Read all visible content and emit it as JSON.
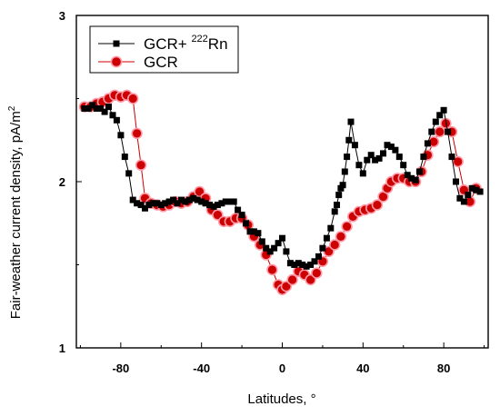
{
  "chart_data": {
    "type": "line",
    "xlabel": "Latitudes, °",
    "ylabel": "Fair-weather current density,  pA/m²",
    "xlim": [
      -102,
      102
    ],
    "ylim": [
      1,
      3
    ],
    "x_ticks": [
      -80,
      -40,
      0,
      40,
      80
    ],
    "x_tick_labels": [
      "-80",
      "-40",
      "0",
      "40",
      "80"
    ],
    "y_ticks": [
      1,
      2,
      3
    ],
    "y_tick_labels": [
      "1",
      "2",
      "3"
    ],
    "grid": false,
    "legend_position": "top-left",
    "legend": {
      "gcr_rn_prefix": "GCR+ ",
      "gcr_rn_sup": "222",
      "gcr_rn_suffix": "Rn",
      "gcr": "GCR"
    },
    "series": [
      {
        "key": "gcr_rn",
        "marker": "square",
        "color": "#000000",
        "x": [
          -98,
          -96,
          -94,
          -92,
          -90,
          -88,
          -86,
          -84,
          -82,
          -80,
          -78,
          -76,
          -74,
          -72,
          -70,
          -68,
          -66,
          -64,
          -62,
          -60,
          -58,
          -56,
          -54,
          -52,
          -50,
          -48,
          -46,
          -44,
          -42,
          -40,
          -38,
          -36,
          -34,
          -32,
          -30,
          -28,
          -26,
          -24,
          -22,
          -20,
          -18,
          -16,
          -14,
          -12,
          -10,
          -8,
          -6,
          -4,
          -2,
          0,
          2,
          4,
          6,
          8,
          10,
          12,
          14,
          16,
          18,
          20,
          22,
          24,
          26,
          27,
          28,
          29,
          30,
          31,
          32,
          33,
          34,
          36,
          38,
          40,
          42,
          44,
          46,
          48,
          50,
          52,
          54,
          56,
          58,
          60,
          62,
          64,
          66,
          68,
          70,
          72,
          74,
          76,
          78,
          80,
          82,
          84,
          86,
          88,
          90,
          92,
          94,
          96,
          98
        ],
        "y": [
          2.44,
          2.44,
          2.46,
          2.44,
          2.44,
          2.42,
          2.45,
          2.4,
          2.37,
          2.28,
          2.15,
          2.05,
          1.89,
          1.87,
          1.86,
          1.84,
          1.86,
          1.87,
          1.87,
          1.86,
          1.87,
          1.88,
          1.89,
          1.87,
          1.89,
          1.88,
          1.89,
          1.9,
          1.89,
          1.88,
          1.87,
          1.86,
          1.85,
          1.86,
          1.87,
          1.88,
          1.88,
          1.88,
          1.83,
          1.8,
          1.75,
          1.7,
          1.7,
          1.69,
          1.64,
          1.6,
          1.58,
          1.6,
          1.63,
          1.66,
          1.58,
          1.51,
          1.5,
          1.51,
          1.5,
          1.49,
          1.5,
          1.52,
          1.55,
          1.6,
          1.66,
          1.72,
          1.82,
          1.86,
          1.92,
          1.96,
          1.98,
          2.06,
          2.15,
          2.25,
          2.36,
          2.22,
          2.1,
          2.05,
          2.13,
          2.16,
          2.13,
          2.14,
          2.17,
          2.22,
          2.21,
          2.19,
          2.15,
          2.1,
          2.04,
          2.02,
          2.01,
          2.06,
          2.15,
          2.23,
          2.3,
          2.36,
          2.4,
          2.43,
          2.3,
          2.15,
          2.0,
          1.9,
          1.88,
          1.92,
          1.96,
          1.95,
          1.94
        ]
      },
      {
        "key": "gcr",
        "marker": "circle",
        "color": "#cc0000",
        "x": [
          -98,
          -95,
          -92,
          -89,
          -86,
          -83,
          -80,
          -77,
          -74,
          -72,
          -70,
          -68,
          -65,
          -62,
          -59,
          -56,
          -53,
          -50,
          -47,
          -44,
          -41,
          -38,
          -35,
          -32,
          -29,
          -26,
          -23,
          -20,
          -17,
          -14,
          -11,
          -8,
          -5,
          -2,
          0,
          2,
          5,
          8,
          11,
          14,
          17,
          20,
          23,
          26,
          29,
          32,
          35,
          38,
          41,
          44,
          47,
          50,
          52,
          54,
          57,
          60,
          63,
          66,
          69,
          72,
          75,
          78,
          81,
          84,
          87,
          90,
          93,
          96
        ],
        "y": [
          2.45,
          2.45,
          2.47,
          2.48,
          2.5,
          2.52,
          2.51,
          2.52,
          2.5,
          2.29,
          2.1,
          1.9,
          1.87,
          1.86,
          1.85,
          1.86,
          1.88,
          1.87,
          1.88,
          1.91,
          1.94,
          1.9,
          1.83,
          1.8,
          1.76,
          1.76,
          1.78,
          1.78,
          1.74,
          1.67,
          1.62,
          1.56,
          1.47,
          1.38,
          1.35,
          1.37,
          1.41,
          1.46,
          1.44,
          1.41,
          1.45,
          1.52,
          1.58,
          1.62,
          1.67,
          1.73,
          1.79,
          1.82,
          1.83,
          1.84,
          1.86,
          1.91,
          1.96,
          2.0,
          2.02,
          2.02,
          2.0,
          2.0,
          2.06,
          2.16,
          2.24,
          2.3,
          2.35,
          2.3,
          2.12,
          1.95,
          1.88,
          1.96
        ]
      }
    ]
  }
}
